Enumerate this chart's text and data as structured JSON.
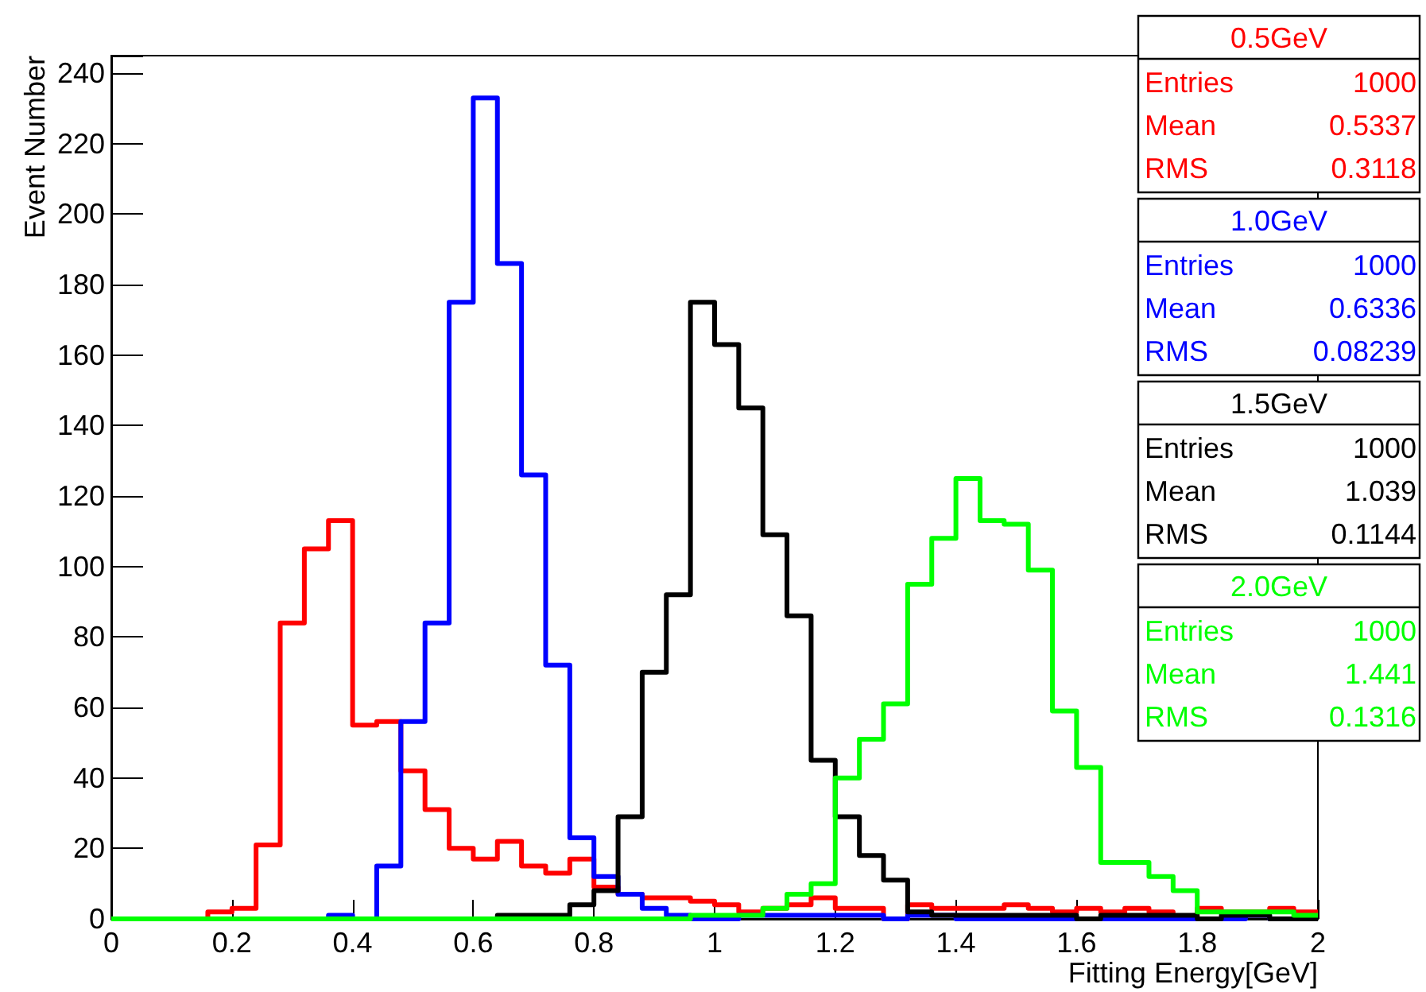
{
  "chart_data": {
    "type": "histogram",
    "xlabel": "Fitting Energy[GeV]",
    "ylabel": "Event Number",
    "bins": [
      0,
      0.04,
      0.08,
      0.12,
      0.16,
      0.2,
      0.24,
      0.28,
      0.32,
      0.36,
      0.4,
      0.44,
      0.48,
      0.52,
      0.56,
      0.6,
      0.64,
      0.68,
      0.72,
      0.76,
      0.8,
      0.84,
      0.88,
      0.92,
      0.96,
      1,
      1.04,
      1.08,
      1.12,
      1.16,
      1.2,
      1.24,
      1.28,
      1.32,
      1.36,
      1.4,
      1.44,
      1.48,
      1.52,
      1.56,
      1.6,
      1.64,
      1.68,
      1.72,
      1.76,
      1.8,
      1.84,
      1.88,
      1.92,
      1.96,
      2
    ],
    "series": [
      {
        "name": "0.5GeV",
        "color": "#ff0000",
        "values": [
          0,
          0,
          0,
          0,
          2,
          3,
          21,
          84,
          105,
          113,
          55,
          56,
          42,
          31,
          20,
          17,
          22,
          15,
          13,
          17,
          9,
          7,
          6,
          6,
          5,
          4,
          2,
          3,
          4,
          6,
          3,
          3,
          0,
          4,
          3,
          3,
          3,
          4,
          3,
          2,
          3,
          2,
          3,
          2,
          0,
          3,
          2,
          2,
          3,
          2
        ]
      },
      {
        "name": "1.0GeV",
        "color": "#0000ff",
        "values": [
          0,
          0,
          0,
          0,
          0,
          0,
          0,
          0,
          0,
          1,
          0,
          15,
          56,
          84,
          175,
          233,
          186,
          126,
          72,
          23,
          12,
          7,
          3,
          1,
          0,
          0,
          1,
          1,
          1,
          1,
          1,
          1,
          0,
          1,
          1,
          0,
          0,
          0,
          0,
          0,
          0,
          0,
          0,
          0,
          0,
          0,
          0,
          1,
          0,
          0
        ]
      },
      {
        "name": "1.5GeV",
        "color": "#000000",
        "values": [
          0,
          0,
          0,
          0,
          0,
          0,
          0,
          0,
          0,
          0,
          0,
          0,
          0,
          0,
          0,
          0,
          1,
          1,
          1,
          4,
          8,
          29,
          70,
          92,
          175,
          163,
          145,
          109,
          86,
          45,
          29,
          18,
          11,
          2,
          1,
          1,
          1,
          1,
          1,
          1,
          0,
          1,
          1,
          1,
          1,
          0,
          1,
          1,
          0,
          0
        ]
      },
      {
        "name": "2.0GeV",
        "color": "#00ff00",
        "values": [
          0,
          0,
          0,
          0,
          0,
          0,
          0,
          0,
          0,
          0,
          0,
          0,
          0,
          0,
          0,
          0,
          0,
          0,
          0,
          0,
          0,
          0,
          0,
          0,
          1,
          1,
          1,
          3,
          7,
          10,
          40,
          51,
          61,
          95,
          108,
          125,
          113,
          112,
          99,
          59,
          43,
          16,
          16,
          12,
          8,
          2,
          2,
          2,
          2,
          1
        ]
      }
    ],
    "annotations": [
      "Entries",
      "1000",
      "Mean",
      "0.5337",
      "RMS",
      "0.3118",
      "Entries",
      "1000",
      "Mean",
      "0.6336",
      "RMS",
      "0.08239",
      "Entries",
      "1000",
      "Mean",
      "1.039",
      "RMS",
      "0.1144",
      "Entries",
      "1000",
      "Mean",
      "1.441",
      "RMS",
      "0.1316"
    ],
    "xlim": [
      0,
      2
    ],
    "xticks": [
      0,
      0.2,
      0.4,
      0.6,
      0.8,
      1,
      1.2,
      1.4,
      1.6,
      1.8,
      2
    ],
    "ylim": [
      0,
      245
    ],
    "yticks": [
      0,
      20,
      40,
      60,
      80,
      100,
      120,
      140,
      160,
      180,
      200,
      220,
      240
    ],
    "grid": false,
    "legend": "top right",
    "marker": "none",
    "line_style": "solid"
  }
}
